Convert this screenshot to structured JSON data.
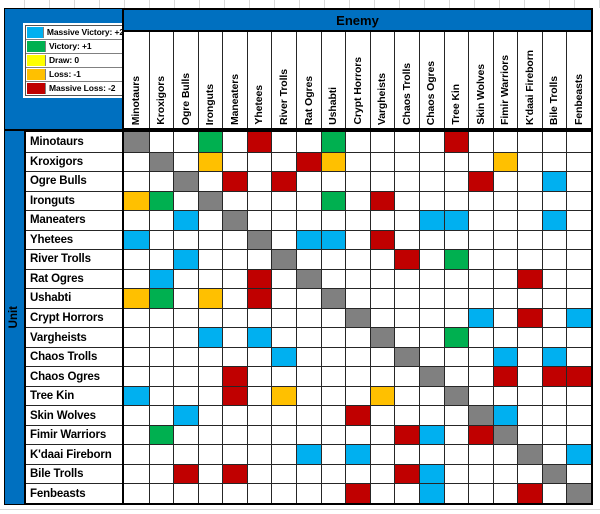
{
  "sheet": {
    "enemy_label": "Enemy",
    "unit_label": "Unit"
  },
  "legend": {
    "items": [
      {
        "label": "Massive Victory: +2",
        "color": "#00B0F0"
      },
      {
        "label": "Victory: +1",
        "color": "#00B050"
      },
      {
        "label": "Draw: 0",
        "color": "#FFFF00"
      },
      {
        "label": "Loss: -1",
        "color": "#FFC000"
      },
      {
        "label": "Massive Loss: -2",
        "color": "#C00000"
      }
    ]
  },
  "colors": {
    "band_blue": "#0070C0",
    "grid_line": "#262626",
    "C": "#00B0F0",
    "G": "#00B050",
    "Y": "#FFFF00",
    "O": "#FFC000",
    "R": "#C00000",
    "A": "#808080",
    ".": "#FFFFFF"
  },
  "chart_data": {
    "type": "heatmap",
    "title": "",
    "x_group_label": "Enemy",
    "y_group_label": "Unit",
    "categories": [
      "Minotaurs",
      "Kroxigors",
      "Ogre Bulls",
      "Ironguts",
      "Maneaters",
      "Yhetees",
      "River Trolls",
      "Rat Ogres",
      "Ushabti",
      "Crypt Horrors",
      "Vargheists",
      "Chaos Trolls",
      "Chaos Ogres",
      "Tree Kin",
      "Skin Wolves",
      "Fimir Warriors",
      "K'daai Fireborn",
      "Bile Trolls",
      "Fenbeasts"
    ],
    "code_scores": {
      "C": 2,
      "G": 1,
      "Y": 0,
      "O": -1,
      "R": -2
    },
    "cell_codes_legend": "C=cyan massive victory, G=green victory, O=orange loss, R=red massive loss, A=grey diagonal, .=blank",
    "rows": [
      "A..G.R..G....R.....",
      ".A.O...RO......O...",
      "..A.R.R.......R..C.",
      "OG.A....G.R........",
      "..C.A.......CC...C.",
      "C....A.CC.R........",
      "..C...A....R.G.....",
      ".C...R.A........R..",
      "OG.O.R..A..........",
      ".........A....C.R.C",
      "...C.C....A..G.....",
      "......C....A...C.C.",
      "....R.......A..R.RR",
      "C...R.O...O..A.....",
      "..C......R....AC...",
      ".G.........RC.RA...",
      ".......C.C......A.C",
      "..R.R......RC....A.",
      ".........R..C...R.A"
    ]
  }
}
